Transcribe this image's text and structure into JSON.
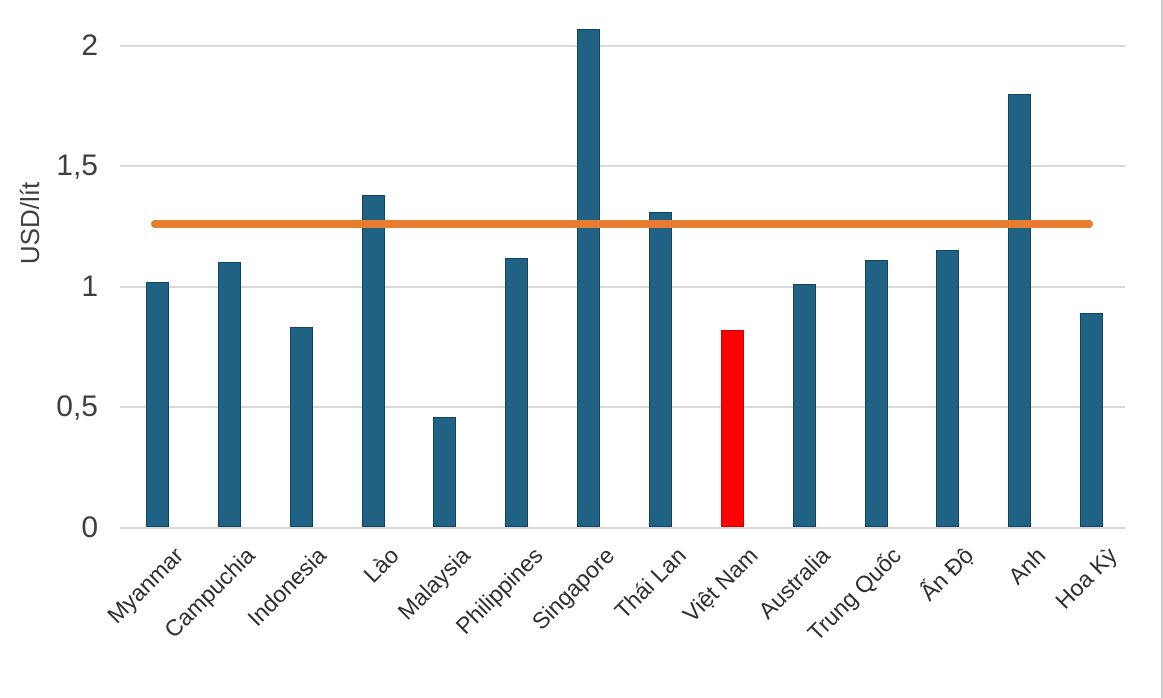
{
  "chart_data": {
    "type": "bar",
    "title": "",
    "xlabel": "",
    "ylabel": "USD/lít",
    "categories": [
      "Myanmar",
      "Campuchia",
      "Indonesia",
      "Lào",
      "Malaysia",
      "Philippines",
      "Singapore",
      "Thái Lan",
      "Việt Nam",
      "Australia",
      "Trung Quốc",
      "Ấn Độ",
      "Anh",
      "Hoa Kỳ"
    ],
    "values": [
      1.02,
      1.1,
      0.83,
      1.38,
      0.46,
      1.12,
      2.07,
      1.31,
      0.82,
      1.01,
      1.11,
      1.15,
      1.8,
      0.89
    ],
    "highlight_category": "Việt Nam",
    "highlight_index": 8,
    "reference_line": {
      "value": 1.26
    },
    "y_ticks": [
      {
        "value": 0,
        "label": "0"
      },
      {
        "value": 0.5,
        "label": "0,5"
      },
      {
        "value": 1,
        "label": "1"
      },
      {
        "value": 1.5,
        "label": "1,5"
      },
      {
        "value": 2,
        "label": "2"
      }
    ],
    "ylim": [
      0,
      2.15
    ],
    "grid": true,
    "legend": false,
    "colors": {
      "bar": "#1f6284",
      "bar_border": "#14455e",
      "highlight": "#fe0000",
      "highlight_border": "#d40000",
      "reference_line": "#e87d31",
      "gridline": "#d9d9d9",
      "axis_text": "#3f3f3f"
    }
  }
}
